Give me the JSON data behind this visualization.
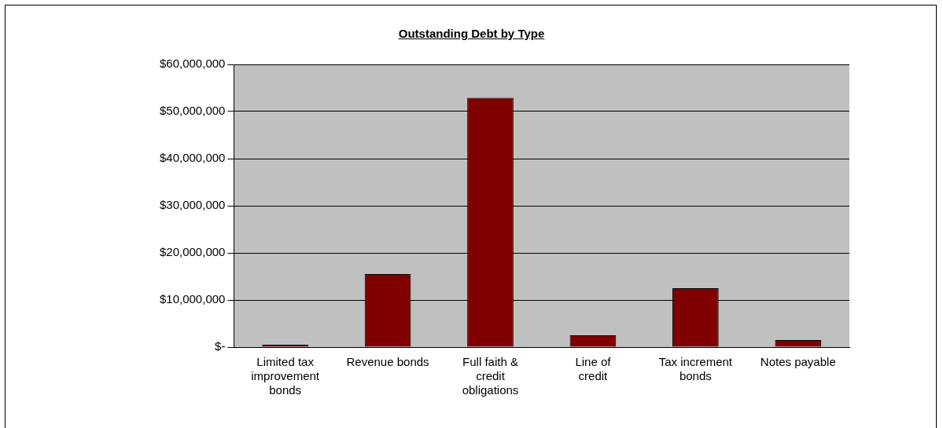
{
  "chart_data": {
    "type": "bar",
    "title": "Outstanding Debt by Type",
    "categories": [
      "Limited tax improvement bonds",
      "Revenue bonds",
      "Full faith & credit obligations",
      "Line of credit",
      "Tax increment bonds",
      "Notes payable"
    ],
    "values": [
      200000,
      15500000,
      52900000,
      2500000,
      12500000,
      1500000
    ],
    "color": "#800000",
    "ylim": [
      0,
      60000000
    ],
    "yticks": [
      {
        "value": 0,
        "label": "$-"
      },
      {
        "value": 10000000,
        "label": "$10,000,000"
      },
      {
        "value": 20000000,
        "label": "$20,000,000"
      },
      {
        "value": 30000000,
        "label": "$30,000,000"
      },
      {
        "value": 40000000,
        "label": "$40,000,000"
      },
      {
        "value": 50000000,
        "label": "$50,000,000"
      },
      {
        "value": 60000000,
        "label": "$60,000,000"
      }
    ],
    "grid": "y"
  }
}
